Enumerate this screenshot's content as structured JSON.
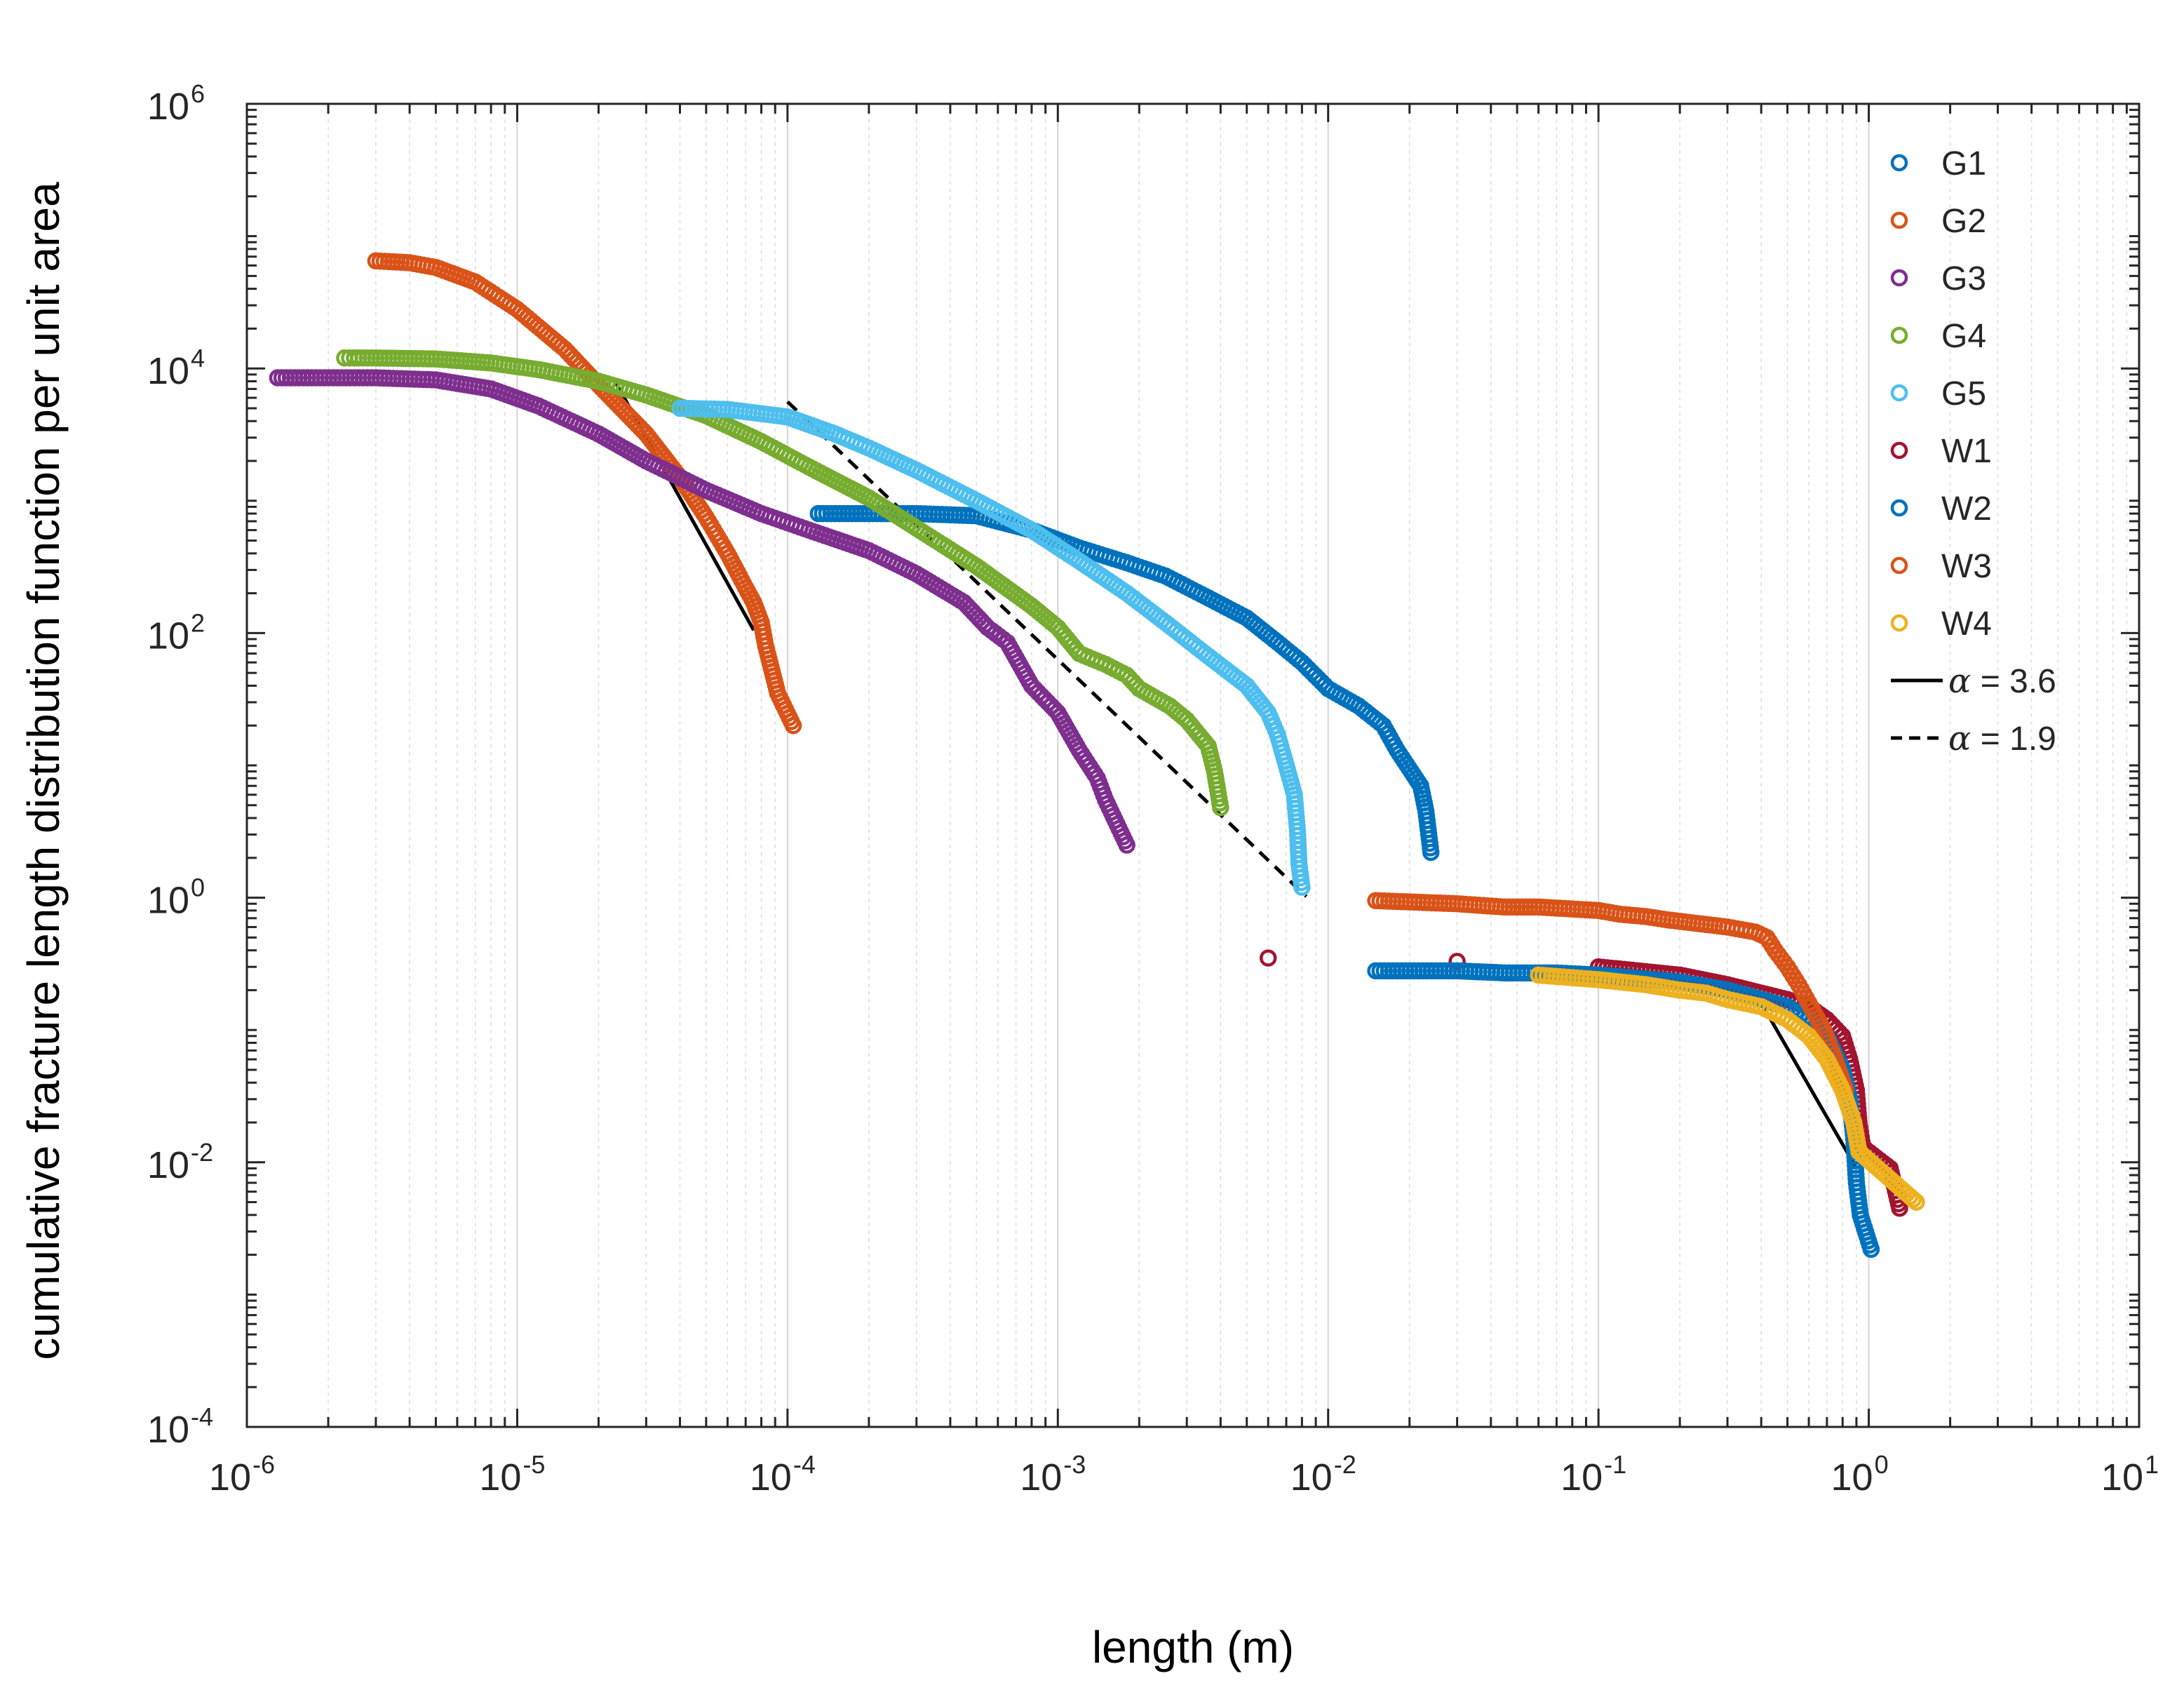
{
  "chart_data": {
    "type": "scatter",
    "title": "",
    "xlabel": "length (m)",
    "ylabel": "cumulative fracture length distribution function per unit area",
    "x_scale": "log",
    "y_scale": "log",
    "xlim": [
      1e-06,
      10
    ],
    "ylim": [
      0.0001,
      1000000.0
    ],
    "grid": "x-major-and-minor",
    "legend_position": "top-right",
    "x_ticks": [
      {
        "base": "10",
        "exp": "-6"
      },
      {
        "base": "10",
        "exp": "-5"
      },
      {
        "base": "10",
        "exp": "-4"
      },
      {
        "base": "10",
        "exp": "-3"
      },
      {
        "base": "10",
        "exp": "-2"
      },
      {
        "base": "10",
        "exp": "-1"
      },
      {
        "base": "10",
        "exp": "0"
      },
      {
        "base": "10",
        "exp": "1"
      }
    ],
    "y_ticks": [
      {
        "base": "10",
        "exp": "-4"
      },
      {
        "base": "10",
        "exp": "-2"
      },
      {
        "base": "10",
        "exp": "0"
      },
      {
        "base": "10",
        "exp": "2"
      },
      {
        "base": "10",
        "exp": "4"
      },
      {
        "base": "10",
        "exp": "6"
      }
    ],
    "series": [
      {
        "name": "G1",
        "color": "#0072BD",
        "points": [
          [
            0.00013,
            800
          ],
          [
            0.0002,
            800
          ],
          [
            0.0003,
            800
          ],
          [
            0.0005,
            770
          ],
          [
            0.0008,
            600
          ],
          [
            0.0012,
            440
          ],
          [
            0.0018,
            340
          ],
          [
            0.0025,
            270
          ],
          [
            0.0035,
            190
          ],
          [
            0.005,
            130
          ],
          [
            0.0065,
            85
          ],
          [
            0.008,
            60
          ],
          [
            0.01,
            38
          ],
          [
            0.013,
            28
          ],
          [
            0.016,
            20
          ],
          [
            0.018,
            13
          ],
          [
            0.022,
            7
          ],
          [
            0.023,
            4.5
          ],
          [
            0.024,
            2.2
          ]
        ]
      },
      {
        "name": "G2",
        "color": "#D95319",
        "points": [
          [
            3e-06,
            65000
          ],
          [
            4e-06,
            63000
          ],
          [
            5e-06,
            58000
          ],
          [
            7e-06,
            45000
          ],
          [
            1e-05,
            28000
          ],
          [
            1.5e-05,
            14000
          ],
          [
            2e-05,
            7500
          ],
          [
            3e-05,
            3200
          ],
          [
            4e-05,
            1500
          ],
          [
            5e-05,
            750
          ],
          [
            6e-05,
            400
          ],
          [
            7e-05,
            220
          ],
          [
            7.5e-05,
            170
          ],
          [
            8e-05,
            120
          ],
          [
            8.3e-05,
            80
          ],
          [
            8.7e-05,
            55
          ],
          [
            9.2e-05,
            35
          ],
          [
            0.000105,
            20
          ]
        ]
      },
      {
        "name": "G3",
        "color": "#7E2F8E",
        "points": [
          [
            1.3e-06,
            8500
          ],
          [
            3e-06,
            8500
          ],
          [
            5e-06,
            8200
          ],
          [
            8e-06,
            7000
          ],
          [
            1.2e-05,
            5200
          ],
          [
            2e-05,
            3200
          ],
          [
            3e-05,
            2000
          ],
          [
            5e-05,
            1200
          ],
          [
            8e-05,
            800
          ],
          [
            0.00012,
            600
          ],
          [
            0.0002,
            420
          ],
          [
            0.0003,
            280
          ],
          [
            0.00045,
            170
          ],
          [
            0.00055,
            110
          ],
          [
            0.00065,
            85
          ],
          [
            0.0008,
            40
          ],
          [
            0.001,
            25
          ],
          [
            0.0012,
            13
          ],
          [
            0.0014,
            8
          ],
          [
            0.0015,
            5.5
          ],
          [
            0.0018,
            2.5
          ]
        ]
      },
      {
        "name": "G4",
        "color": "#77AC30",
        "points": [
          [
            2.3e-06,
            12000
          ],
          [
            2.5e-06,
            12000
          ],
          [
            3e-06,
            12000
          ],
          [
            5e-06,
            11800
          ],
          [
            8e-06,
            11000
          ],
          [
            1.2e-05,
            9800
          ],
          [
            2e-05,
            8000
          ],
          [
            3e-05,
            6300
          ],
          [
            5e-05,
            4400
          ],
          [
            8e-05,
            2800
          ],
          [
            0.00012,
            1800
          ],
          [
            0.0002,
            1050
          ],
          [
            0.0003,
            620
          ],
          [
            0.0005,
            320
          ],
          [
            0.0008,
            160
          ],
          [
            0.001,
            110
          ],
          [
            0.0012,
            70
          ],
          [
            0.0015,
            58
          ],
          [
            0.0018,
            48
          ],
          [
            0.002,
            38
          ],
          [
            0.0026,
            28
          ],
          [
            0.003,
            22
          ],
          [
            0.0036,
            14
          ],
          [
            0.0038,
            9
          ],
          [
            0.004,
            4.8
          ]
        ]
      },
      {
        "name": "G5",
        "color": "#4DBEEE",
        "points": [
          [
            4e-05,
            5000
          ],
          [
            6e-05,
            4900
          ],
          [
            0.0001,
            4300
          ],
          [
            0.00015,
            3200
          ],
          [
            0.0002,
            2500
          ],
          [
            0.0003,
            1700
          ],
          [
            0.0005,
            1000
          ],
          [
            0.0008,
            600
          ],
          [
            0.0012,
            350
          ],
          [
            0.0018,
            200
          ],
          [
            0.0025,
            120
          ],
          [
            0.0035,
            70
          ],
          [
            0.005,
            40
          ],
          [
            0.006,
            25
          ],
          [
            0.0065,
            17
          ],
          [
            0.007,
            10
          ],
          [
            0.0075,
            6
          ],
          [
            0.0077,
            3.2
          ],
          [
            0.0078,
            1.8
          ],
          [
            0.008,
            1.2
          ]
        ]
      },
      {
        "name": "W1",
        "color": "#A2142F",
        "points": [
          [
            0.006,
            0.35
          ],
          [
            0.03,
            0.33
          ],
          [
            0.1,
            0.3
          ],
          [
            0.2,
            0.26
          ],
          [
            0.3,
            0.22
          ],
          [
            0.4,
            0.19
          ],
          [
            0.5,
            0.17
          ],
          [
            0.6,
            0.15
          ],
          [
            0.7,
            0.12
          ],
          [
            0.8,
            0.09
          ],
          [
            0.85,
            0.06
          ],
          [
            0.9,
            0.035
          ],
          [
            0.92,
            0.02
          ],
          [
            0.95,
            0.013
          ],
          [
            1.2,
            0.009
          ],
          [
            1.3,
            0.0045
          ]
        ]
      },
      {
        "name": "W2",
        "color": "#0072BD",
        "points": [
          [
            0.015,
            0.28
          ],
          [
            0.03,
            0.28
          ],
          [
            0.045,
            0.27
          ],
          [
            0.07,
            0.27
          ],
          [
            0.1,
            0.26
          ],
          [
            0.2,
            0.23
          ],
          [
            0.3,
            0.2
          ],
          [
            0.4,
            0.17
          ],
          [
            0.5,
            0.15
          ],
          [
            0.6,
            0.12
          ],
          [
            0.7,
            0.09
          ],
          [
            0.8,
            0.05
          ],
          [
            0.85,
            0.03
          ],
          [
            0.88,
            0.015
          ],
          [
            0.9,
            0.007
          ],
          [
            0.93,
            0.004
          ],
          [
            1.02,
            0.0022
          ]
        ]
      },
      {
        "name": "W3",
        "color": "#D95319",
        "points": [
          [
            0.015,
            0.95
          ],
          [
            0.03,
            0.9
          ],
          [
            0.045,
            0.85
          ],
          [
            0.06,
            0.85
          ],
          [
            0.1,
            0.8
          ],
          [
            0.12,
            0.75
          ],
          [
            0.15,
            0.72
          ],
          [
            0.18,
            0.68
          ],
          [
            0.3,
            0.6
          ],
          [
            0.38,
            0.55
          ],
          [
            0.42,
            0.5
          ],
          [
            0.45,
            0.4
          ],
          [
            0.5,
            0.3
          ],
          [
            0.55,
            0.22
          ],
          [
            0.6,
            0.16
          ],
          [
            0.68,
            0.1
          ],
          [
            0.75,
            0.06
          ],
          [
            0.82,
            0.035
          ]
        ]
      },
      {
        "name": "W4",
        "color": "#EDB120",
        "points": [
          [
            0.06,
            0.26
          ],
          [
            0.1,
            0.24
          ],
          [
            0.15,
            0.22
          ],
          [
            0.2,
            0.2
          ],
          [
            0.25,
            0.19
          ],
          [
            0.3,
            0.17
          ],
          [
            0.4,
            0.15
          ],
          [
            0.5,
            0.12
          ],
          [
            0.6,
            0.09
          ],
          [
            0.7,
            0.06
          ],
          [
            0.8,
            0.035
          ],
          [
            0.88,
            0.02
          ],
          [
            0.92,
            0.012
          ],
          [
            1.5,
            0.005
          ]
        ]
      }
    ],
    "fit_lines": [
      {
        "name": "α = 3.6",
        "alpha_symbol": "α",
        "alpha_value": " = 3.6",
        "style": "solid",
        "segments": [
          [
            [
              2.3e-05,
              8000
            ],
            [
              7.5e-05,
              105
            ]
          ],
          [
            [
              0.4,
              0.16
            ],
            [
              0.9,
              0.009
            ]
          ]
        ]
      },
      {
        "name": "α = 1.9",
        "alpha_symbol": "α",
        "alpha_value": " = 1.9",
        "style": "dashed",
        "segments": [
          [
            [
              0.0001,
              5600
            ],
            [
              0.0083,
              1.02
            ]
          ]
        ]
      }
    ]
  }
}
